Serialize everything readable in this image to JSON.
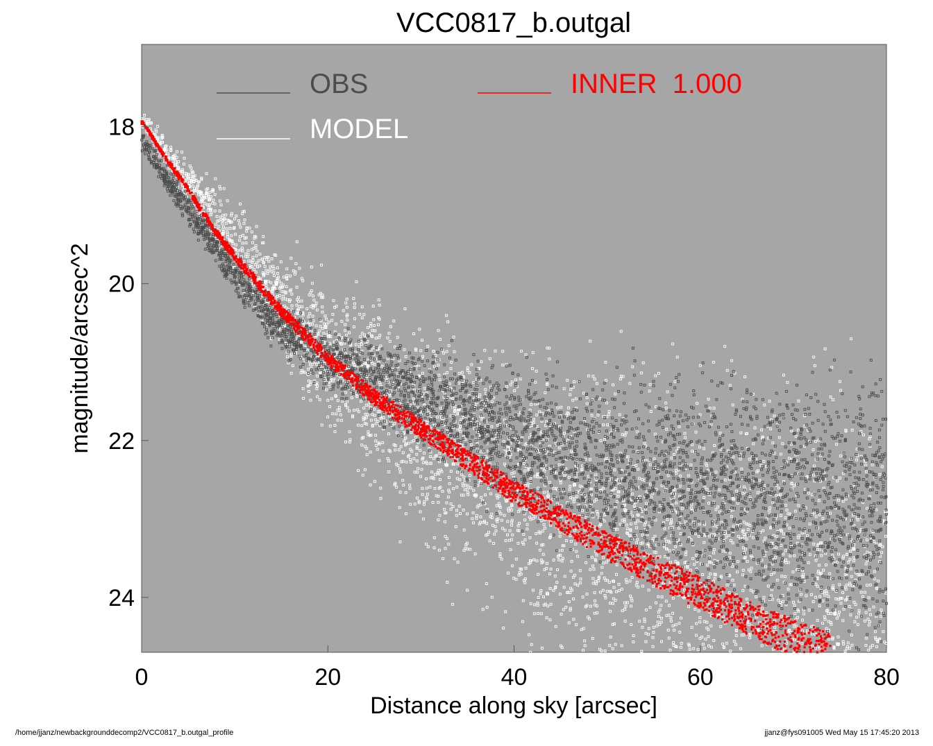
{
  "footer": {
    "path": "/home/jjanz/newbackgrounddecomp2/VCC0817_b.outgal_profile",
    "stamp": "jjanz@fys091005  Wed May 15 17:45:20 2013"
  },
  "chart_data": {
    "type": "scatter",
    "title": "VCC0817_b.outgal",
    "xlabel": "Distance along sky [arcsec]",
    "ylabel": "magnitude/arcsec^2",
    "xlim": [
      0,
      80
    ],
    "ylim": [
      24.7,
      16.95
    ],
    "y_inverted": true,
    "xticks": [
      0,
      20,
      40,
      60,
      80
    ],
    "yticks": [
      18,
      20,
      22,
      24
    ],
    "grid": false,
    "background": "#a6a6a6",
    "legend": {
      "placement": "top",
      "entries": [
        {
          "label": "OBS",
          "color": "#4d4d4d"
        },
        {
          "label": "MODEL",
          "color": "#ffffff"
        },
        {
          "label": "INNER  1.000",
          "color": "#ff0000"
        }
      ]
    },
    "series": [
      {
        "name": "OBS",
        "color": "#4d4d4d",
        "profile": {
          "x": [
            0.2,
            2,
            5,
            8,
            12,
            16,
            20,
            25,
            30,
            35,
            40,
            50,
            60,
            70,
            80
          ],
          "y": [
            18.2,
            18.55,
            19.05,
            19.55,
            20.2,
            20.65,
            21.0,
            21.2,
            21.5,
            21.75,
            22.0,
            22.4,
            22.65,
            22.8,
            22.9
          ]
        }
      },
      {
        "name": "MODEL",
        "color": "#ffffff",
        "profile": {
          "x": [
            0.2,
            5,
            10,
            15,
            20,
            30,
            40,
            50,
            60,
            70,
            80
          ],
          "y": [
            17.95,
            18.7,
            19.45,
            20.2,
            20.9,
            21.9,
            22.6,
            23.15,
            23.65,
            24.1,
            24.5
          ]
        }
      },
      {
        "name": "INNER  1.000",
        "color": "#ff0000",
        "x": [
          0.2,
          2,
          5,
          8,
          10,
          15,
          20,
          25,
          30,
          35,
          40,
          45,
          50,
          55,
          60,
          65,
          70,
          74
        ],
        "y": [
          17.95,
          18.3,
          18.8,
          19.35,
          19.65,
          20.35,
          20.95,
          21.45,
          21.85,
          22.25,
          22.65,
          23.0,
          23.35,
          23.65,
          23.95,
          24.25,
          24.52,
          24.7
        ]
      }
    ]
  }
}
